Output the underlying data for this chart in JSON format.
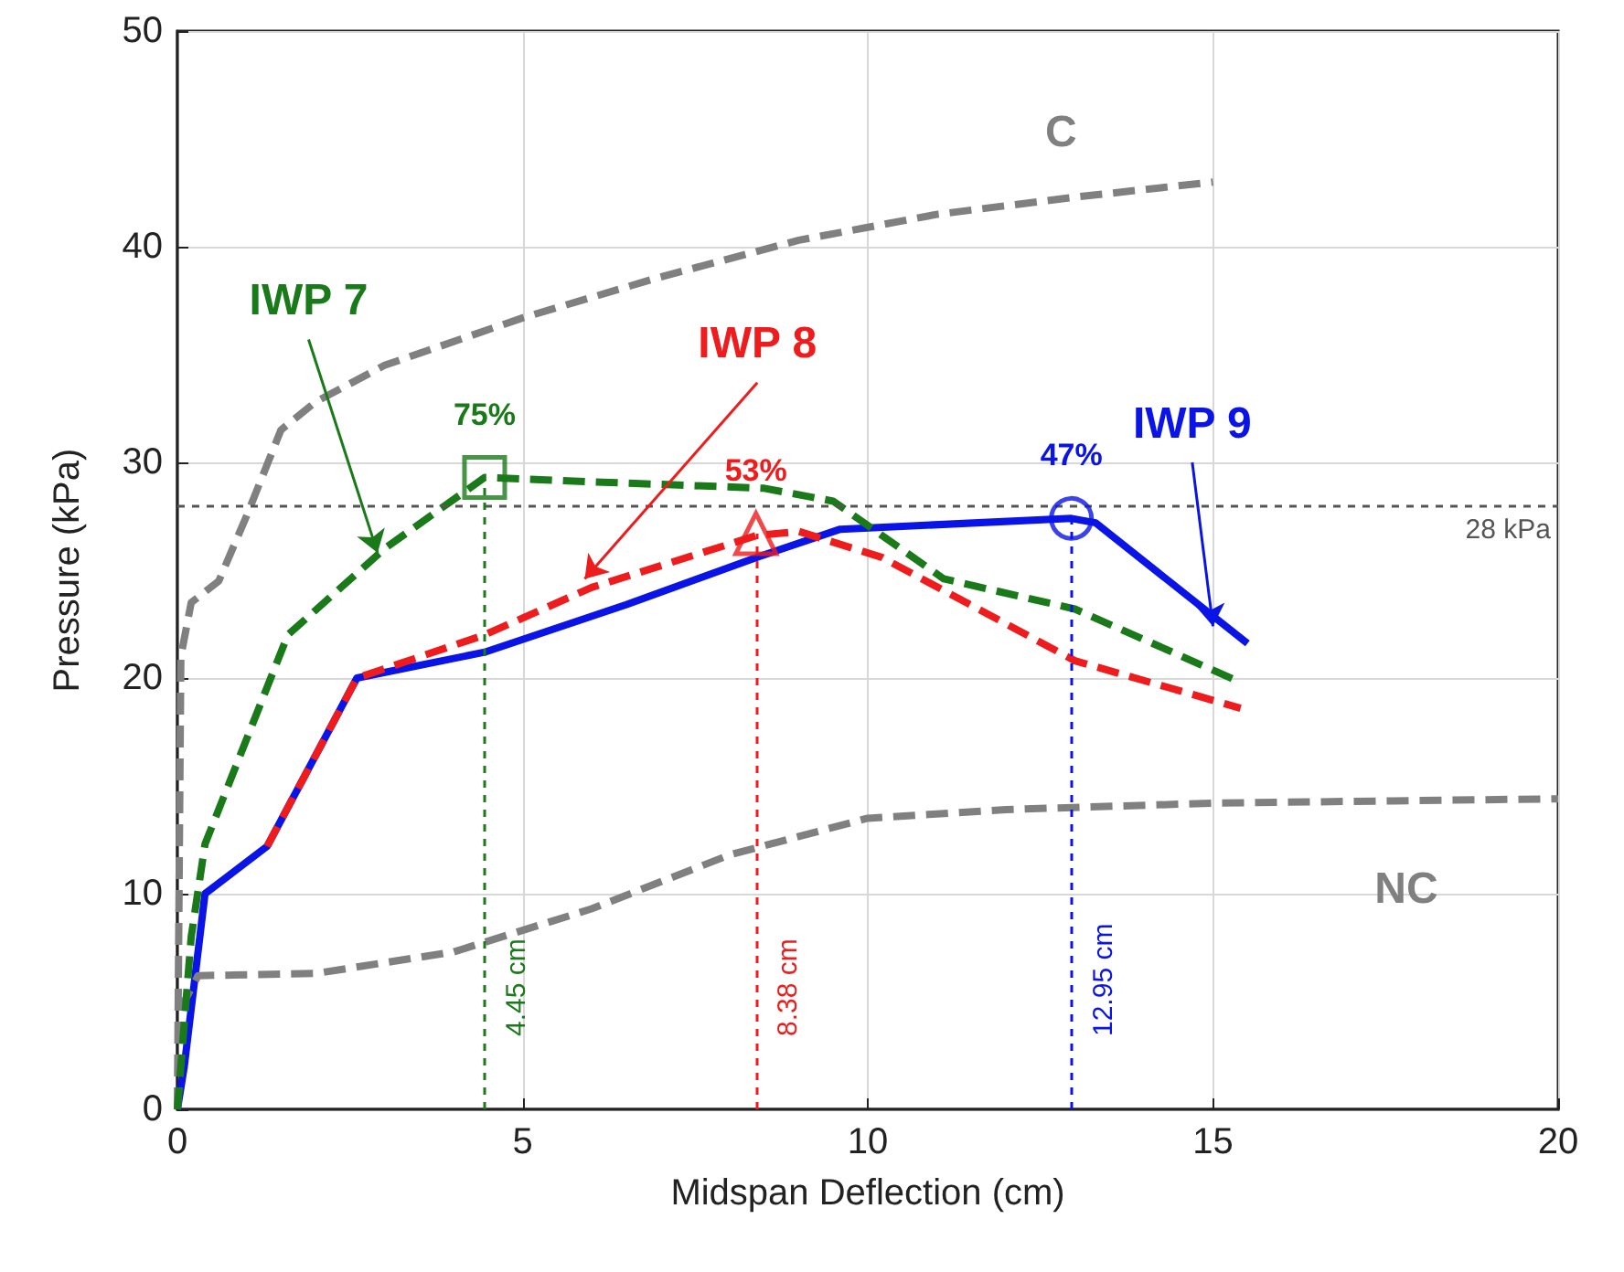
{
  "chart_data": {
    "type": "line",
    "xlabel": "Midspan Deflection (cm)",
    "ylabel": "Pressure (kPa)",
    "xlim": [
      0,
      20
    ],
    "xticks": [
      0,
      5,
      10,
      15,
      20
    ],
    "ylim": [
      0,
      50
    ],
    "yticks": [
      0,
      10,
      20,
      30,
      40,
      50
    ],
    "grid": true,
    "legend": false,
    "series": [
      {
        "name": "C",
        "color": "#808080",
        "line_style": "dashed",
        "x": [
          0,
          0.05,
          0.2,
          0.6,
          1,
          1.5,
          2,
          3,
          5,
          7,
          9,
          11,
          13,
          15
        ],
        "values": [
          0,
          21,
          23.5,
          24.5,
          27.5,
          31.5,
          32.8,
          34.5,
          36.7,
          38.6,
          40.3,
          41.5,
          42.3,
          43
        ]
      },
      {
        "name": "NC",
        "color": "#808080",
        "line_style": "dashed",
        "x": [
          0,
          0.1,
          0.3,
          2,
          4,
          6,
          8,
          10,
          12,
          15,
          20
        ],
        "values": [
          0,
          5,
          6.2,
          6.3,
          7.3,
          9.3,
          11.8,
          13.5,
          13.9,
          14.2,
          14.4
        ]
      },
      {
        "name": "IWP 7",
        "color": "#1a7a1a",
        "line_style": "dashed",
        "x": [
          0,
          0.2,
          0.4,
          1.6,
          3,
          4.45,
          6,
          8.5,
          9.5,
          11.1,
          13,
          15.4
        ],
        "values": [
          0,
          8,
          12.3,
          22,
          26,
          29.3,
          29.1,
          28.8,
          28.2,
          24.6,
          23.2,
          19.8
        ]
      },
      {
        "name": "IWP 8",
        "color": "#ee1c1c",
        "line_style": "dashed",
        "x": [
          1.3,
          2.6,
          4.45,
          6,
          8.38,
          9,
          10.2,
          13,
          15.4
        ],
        "values": [
          12.2,
          20,
          22,
          24.2,
          26.6,
          26.8,
          25.6,
          20.8,
          18.6
        ]
      },
      {
        "name": "IWP 9",
        "color": "#0a14e6",
        "line_style": "solid",
        "x": [
          0,
          0.1,
          0.4,
          1.3,
          2.6,
          4.45,
          6.5,
          8.4,
          9.6,
          12.95,
          13.3,
          15.5
        ],
        "values": [
          0,
          2,
          10,
          12.2,
          20,
          21.2,
          23.4,
          25.6,
          26.9,
          27.4,
          27.2,
          21.6
        ]
      },
      {
        "type": "scatter",
        "marker": "square",
        "color": "#1a7a1a",
        "x": [
          4.45
        ],
        "values": [
          29.3
        ]
      },
      {
        "type": "scatter",
        "marker": "triangle",
        "color": "#ee1c1c",
        "x": [
          8.38
        ],
        "values": [
          26.7
        ]
      },
      {
        "type": "scatter",
        "marker": "circle",
        "color": "#0a14e6",
        "x": [
          12.95
        ],
        "values": [
          27.4
        ]
      }
    ],
    "annotations": [
      {
        "text": "75%",
        "x": 4.45,
        "y": 29.3
      },
      {
        "text": "53%",
        "x": 8.38,
        "y": 26.7
      },
      {
        "text": "47%",
        "x": 12.95,
        "y": 27.4
      }
    ],
    "ref_lines": [
      {
        "axis": "y",
        "value": 28,
        "label": "28 kPa",
        "color": "#555555",
        "line_style": "dashed"
      },
      {
        "axis": "x",
        "value": 4.45,
        "label": "4.45 cm",
        "color": "#1a7a1a",
        "line_style": "dashed"
      },
      {
        "axis": "x",
        "value": 8.38,
        "label": "8.38 cm",
        "color": "#ee1c1c",
        "line_style": "dashed"
      },
      {
        "axis": "x",
        "value": 12.95,
        "label": "12.95 cm",
        "color": "#0a14e6",
        "line_style": "dashed"
      }
    ]
  }
}
